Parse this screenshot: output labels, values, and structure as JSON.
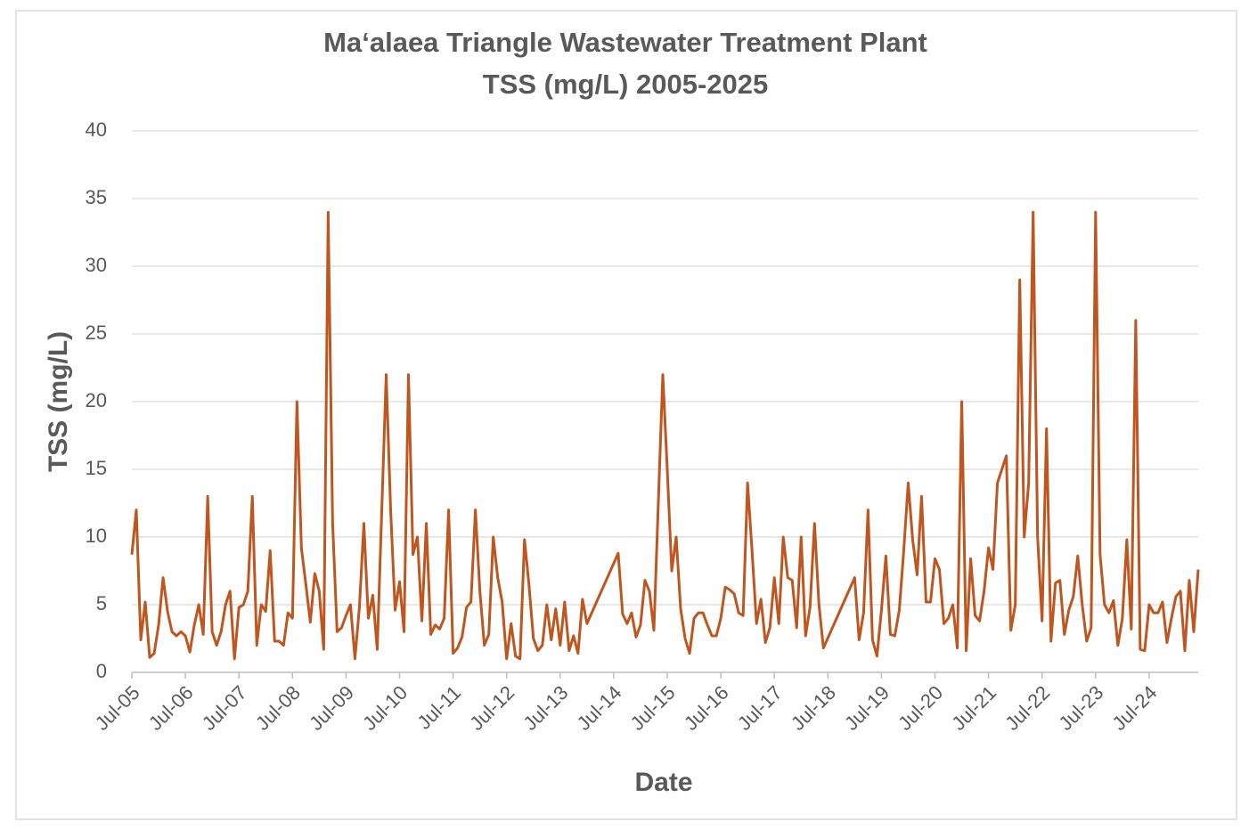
{
  "chart_data": {
    "type": "line",
    "title": "Ma‘alaea Triangle Wastewater Treatment Plant",
    "subtitle": "TSS (mg/L) 2005-2025",
    "x_label": "Date",
    "y_label": "TSS (mg/L)",
    "xlim": [
      "2005-07",
      "2025-06"
    ],
    "xticks": [
      {
        "value": "2005-07",
        "label": "Jul-05"
      },
      {
        "value": "2006-07",
        "label": "Jul-06"
      },
      {
        "value": "2007-07",
        "label": "Jul-07"
      },
      {
        "value": "2008-07",
        "label": "Jul-08"
      },
      {
        "value": "2009-07",
        "label": "Jul-09"
      },
      {
        "value": "2010-07",
        "label": "Jul-10"
      },
      {
        "value": "2011-07",
        "label": "Jul-11"
      },
      {
        "value": "2012-07",
        "label": "Jul-12"
      },
      {
        "value": "2013-07",
        "label": "Jul-13"
      },
      {
        "value": "2014-07",
        "label": "Jul-14"
      },
      {
        "value": "2015-07",
        "label": "Jul-15"
      },
      {
        "value": "2016-07",
        "label": "Jul-16"
      },
      {
        "value": "2017-07",
        "label": "Jul-17"
      },
      {
        "value": "2018-07",
        "label": "Jul-18"
      },
      {
        "value": "2019-07",
        "label": "Jul-19"
      },
      {
        "value": "2020-07",
        "label": "Jul-20"
      },
      {
        "value": "2021-07",
        "label": "Jul-21"
      },
      {
        "value": "2022-07",
        "label": "Jul-22"
      },
      {
        "value": "2023-07",
        "label": "Jul-23"
      },
      {
        "value": "2024-07",
        "label": "Jul-24"
      }
    ],
    "ylim": [
      0,
      40
    ],
    "yticks": [
      0,
      5,
      10,
      15,
      20,
      25,
      30,
      35,
      40
    ],
    "grid": true,
    "x": [
      "2005-07",
      "2005-08",
      "2005-09",
      "2005-10",
      "2005-11",
      "2005-12",
      "2006-01",
      "2006-02",
      "2006-03",
      "2006-04",
      "2006-05",
      "2006-06",
      "2006-07",
      "2006-08",
      "2006-09",
      "2006-10",
      "2006-11",
      "2006-12",
      "2007-01",
      "2007-02",
      "2007-03",
      "2007-04",
      "2007-05",
      "2007-06",
      "2007-07",
      "2007-08",
      "2007-09",
      "2007-10",
      "2007-11",
      "2007-12",
      "2008-01",
      "2008-02",
      "2008-03",
      "2008-04",
      "2008-05",
      "2008-06",
      "2008-07",
      "2008-08",
      "2008-09",
      "2008-10",
      "2008-11",
      "2008-12",
      "2009-01",
      "2009-02",
      "2009-03",
      "2009-04",
      "2009-05",
      "2009-06",
      "2009-07",
      "2009-08",
      "2009-09",
      "2009-10",
      "2009-11",
      "2009-12",
      "2010-01",
      "2010-02",
      "2010-04",
      "2010-05",
      "2010-06",
      "2010-07",
      "2010-08",
      "2010-09",
      "2010-10",
      "2010-11",
      "2010-12",
      "2011-01",
      "2011-02",
      "2011-03",
      "2011-04",
      "2011-05",
      "2011-06",
      "2011-07",
      "2011-08",
      "2011-09",
      "2011-10",
      "2011-11",
      "2011-12",
      "2012-01",
      "2012-02",
      "2012-03",
      "2012-04",
      "2012-05",
      "2012-06",
      "2012-07",
      "2012-08",
      "2012-09",
      "2012-10",
      "2012-11",
      "2012-12",
      "2013-01",
      "2013-02",
      "2013-03",
      "2013-04",
      "2013-05",
      "2013-06",
      "2013-07",
      "2013-08",
      "2013-09",
      "2013-10",
      "2013-11",
      "2013-12",
      "2014-01",
      "2014-08",
      "2014-09",
      "2014-10",
      "2014-11",
      "2014-12",
      "2015-01",
      "2015-02",
      "2015-03",
      "2015-04",
      "2015-06",
      "2015-07",
      "2015-08",
      "2015-09",
      "2015-10",
      "2015-11",
      "2015-12",
      "2016-01",
      "2016-02",
      "2016-03",
      "2016-04",
      "2016-05",
      "2016-06",
      "2016-07",
      "2016-08",
      "2016-09",
      "2016-10",
      "2016-11",
      "2016-12",
      "2017-01",
      "2017-02",
      "2017-03",
      "2017-04",
      "2017-05",
      "2017-06",
      "2017-07",
      "2017-08",
      "2017-09",
      "2017-10",
      "2017-11",
      "2017-12",
      "2018-01",
      "2018-02",
      "2018-03",
      "2018-04",
      "2018-05",
      "2018-06",
      "2019-01",
      "2019-02",
      "2019-03",
      "2019-04",
      "2019-05",
      "2019-06",
      "2019-07",
      "2019-08",
      "2019-09",
      "2019-10",
      "2019-11",
      "2019-12",
      "2020-01",
      "2020-02",
      "2020-03",
      "2020-04",
      "2020-05",
      "2020-06",
      "2020-07",
      "2020-08",
      "2020-09",
      "2020-10",
      "2020-11",
      "2020-12",
      "2021-01",
      "2021-02",
      "2021-03",
      "2021-04",
      "2021-05",
      "2021-06",
      "2021-07",
      "2021-08",
      "2021-09",
      "2021-10",
      "2021-11",
      "2021-12",
      "2022-01",
      "2022-02",
      "2022-03",
      "2022-04",
      "2022-05",
      "2022-06",
      "2022-07",
      "2022-08",
      "2022-09",
      "2022-10",
      "2022-11",
      "2022-12",
      "2023-01",
      "2023-02",
      "2023-03",
      "2023-04",
      "2023-05",
      "2023-06",
      "2023-07",
      "2023-08",
      "2023-09",
      "2023-10",
      "2023-11",
      "2023-12",
      "2024-01",
      "2024-02",
      "2024-03",
      "2024-04",
      "2024-05",
      "2024-06",
      "2024-07",
      "2024-08",
      "2024-09",
      "2024-10",
      "2024-11",
      "2024-12",
      "2025-01",
      "2025-02",
      "2025-03",
      "2025-04",
      "2025-05",
      "2025-06"
    ],
    "series": [
      {
        "name": "TSS (mg/L)",
        "color": "#c0561f",
        "values": [
          8.7,
          12,
          2.4,
          5.2,
          1.1,
          1.4,
          3.5,
          7,
          4.5,
          3,
          2.7,
          3,
          2.7,
          1.5,
          3.5,
          5,
          2.8,
          13,
          3,
          2,
          3,
          5,
          6,
          1,
          4.8,
          5,
          6,
          13,
          2,
          5,
          4.5,
          9,
          2.3,
          2.3,
          2,
          4.4,
          4,
          20,
          9.2,
          6.5,
          3.7,
          7.3,
          6,
          1.7,
          34,
          11,
          3,
          3.3,
          4.2,
          5,
          1,
          4.8,
          11,
          4,
          5.7,
          1.7,
          22,
          12,
          4.6,
          6.7,
          3,
          22,
          8.7,
          10,
          3.8,
          11,
          2.8,
          3.5,
          3.2,
          4,
          12,
          1.4,
          1.8,
          2.6,
          4.8,
          5.2,
          12,
          6,
          2,
          2.8,
          10,
          7,
          5.2,
          1,
          3.6,
          1.2,
          1,
          9.8,
          6.5,
          2.5,
          1.6,
          2,
          5,
          2.4,
          4.7,
          2,
          5.2,
          1.6,
          2.7,
          1.4,
          5.4,
          3.6,
          8.8,
          4.3,
          3.6,
          4.4,
          2.6,
          3.5,
          6.8,
          6,
          3.1,
          22,
          15,
          7.5,
          10,
          4.7,
          2.5,
          1.4,
          4,
          4.4,
          4.4,
          3.5,
          2.7,
          2.7,
          4,
          6.3,
          6.1,
          5.8,
          4.4,
          4.2,
          14,
          9,
          3.6,
          5.4,
          2.2,
          3.3,
          7,
          3.6,
          10,
          7,
          6.8,
          3.3,
          10,
          2.7,
          4.8,
          11,
          5,
          1.8,
          7,
          2.4,
          4.4,
          12,
          2.4,
          1.2,
          4.6,
          8.6,
          2.8,
          2.7,
          4.6,
          9,
          14,
          9.8,
          7.2,
          13,
          5.2,
          5.2,
          8.4,
          7.6,
          3.6,
          4,
          5,
          1.8,
          20,
          1.6,
          8.4,
          4.2,
          3.8,
          6,
          9.2,
          7.6,
          14,
          15,
          16,
          3.1,
          5,
          29,
          10,
          14,
          34,
          10,
          3.8,
          18,
          2.3,
          6.6,
          6.8,
          2.8,
          4.6,
          5.6,
          8.6,
          5,
          2.3,
          3.3,
          34,
          8.7,
          5,
          4.4,
          5.3,
          2,
          4,
          9.8,
          3.2,
          26,
          1.7,
          1.6,
          5,
          4.4,
          4.4,
          5.2,
          2.2,
          4,
          5.6,
          6,
          1.6,
          6.8,
          3,
          7.6
        ]
      }
    ]
  }
}
